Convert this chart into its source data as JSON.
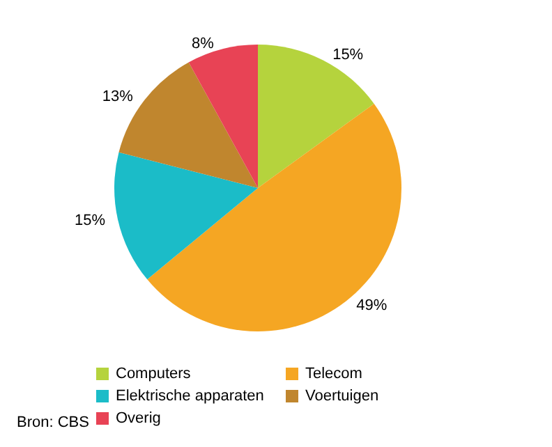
{
  "chart_data": {
    "type": "pie",
    "categories": [
      "Computers",
      "Telecom",
      "Elektrische apparaten",
      "Voertuigen",
      "Overig"
    ],
    "values": [
      15,
      49,
      15,
      13,
      8
    ],
    "colors": [
      "#b5d33d",
      "#f5a623",
      "#1bbcc8",
      "#c0862e",
      "#e84355"
    ],
    "value_labels": [
      "15%",
      "49%",
      "15%",
      "13%",
      "8%"
    ],
    "legend": "bottom",
    "annotations": [
      "Bron: CBS"
    ]
  }
}
